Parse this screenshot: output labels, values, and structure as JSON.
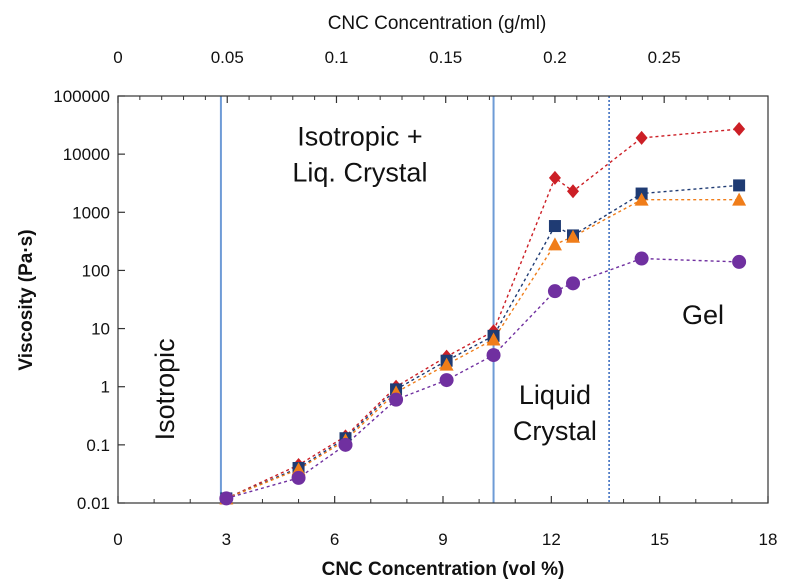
{
  "chart_data": {
    "type": "line",
    "title": "",
    "x_axis": {
      "label": "CNC Concentration (vol %)",
      "range": [
        0,
        18
      ],
      "ticks": [
        0,
        3,
        6,
        9,
        12,
        15,
        18
      ],
      "tick_labels": [
        "0",
        "3",
        "6",
        "9",
        "12",
        "15",
        "18"
      ]
    },
    "top_axis": {
      "label": "CNC Concentration (g/ml)",
      "ticks": [
        0,
        0.05,
        0.1,
        0.15,
        0.2,
        0.25
      ],
      "tick_labels": [
        "0",
        "0.05",
        "0.1",
        "0.15",
        "0.2",
        "0.25"
      ]
    },
    "y_axis": {
      "label": "Viscosity (Pa·s)",
      "scale": "log",
      "range": [
        0.01,
        100000
      ],
      "ticks": [
        0.01,
        0.1,
        1,
        10,
        100,
        1000,
        10000,
        100000
      ],
      "tick_labels": [
        "0.01",
        "0.1",
        "1",
        "10",
        "100",
        "1000",
        "10000",
        "100000"
      ]
    },
    "grid": false,
    "legend": "none",
    "regions": [
      {
        "label_lines": [
          "Isotropic"
        ],
        "vertical": true,
        "x": 1.3,
        "y": 0.9
      },
      {
        "label_lines": [
          "Isotropic +",
          "Liq. Crystal"
        ],
        "x": 6.7,
        "y": 14000
      },
      {
        "label_lines": [
          "Liquid",
          "Crystal"
        ],
        "x": 12.1,
        "y": 0.5
      },
      {
        "label_lines": [
          "Gel"
        ],
        "x": 16.2,
        "y": 12
      }
    ],
    "boundaries": [
      {
        "x": 2.85,
        "style": "solid"
      },
      {
        "x": 10.4,
        "style": "solid"
      },
      {
        "x": 13.6,
        "style": "dotted"
      }
    ],
    "series": [
      {
        "marker": "diamond",
        "color": "#cc1f26",
        "x": [
          3,
          5,
          6.3,
          7.7,
          9.1,
          10.4,
          12.1,
          12.6,
          14.5,
          17.2
        ],
        "y": [
          0.012,
          0.045,
          0.14,
          1.0,
          3.3,
          9.0,
          3900,
          2300,
          19000,
          27000
        ]
      },
      {
        "marker": "square",
        "color": "#1f3b73",
        "x": [
          3,
          5,
          6.3,
          7.7,
          9.1,
          10.4,
          12.1,
          12.6,
          14.5,
          17.2
        ],
        "y": [
          0.012,
          0.04,
          0.13,
          0.9,
          2.8,
          7.5,
          580,
          400,
          2100,
          2900
        ]
      },
      {
        "marker": "triangle",
        "color": "#f07d19",
        "x": [
          3,
          5,
          6.3,
          7.7,
          9.1,
          10.4,
          12.1,
          12.6,
          14.5,
          17.2
        ],
        "y": [
          0.012,
          0.038,
          0.12,
          0.8,
          2.4,
          6.5,
          280,
          380,
          1650,
          1650
        ]
      },
      {
        "marker": "circle",
        "color": "#7030a0",
        "x": [
          3,
          5,
          6.3,
          7.7,
          9.1,
          10.4,
          12.1,
          12.6,
          14.5,
          17.2
        ],
        "y": [
          0.012,
          0.027,
          0.1,
          0.6,
          1.3,
          3.5,
          44,
          60,
          160,
          140
        ]
      }
    ]
  }
}
